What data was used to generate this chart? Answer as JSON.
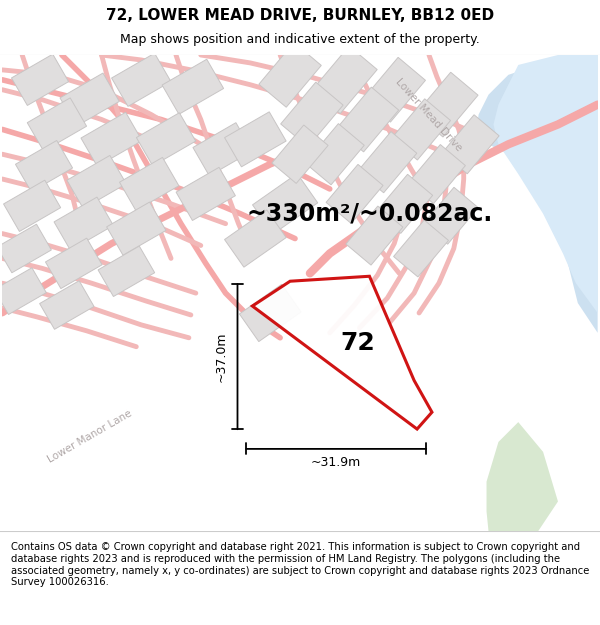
{
  "title": "72, LOWER MEAD DRIVE, BURNLEY, BB12 0ED",
  "subtitle": "Map shows position and indicative extent of the property.",
  "area_text": "~330m²/~0.082ac.",
  "label_72": "72",
  "dim_height": "~37.0m",
  "dim_width": "~31.9m",
  "footer": "Contains OS data © Crown copyright and database right 2021. This information is subject to Crown copyright and database rights 2023 and is reproduced with the permission of HM Land Registry. The polygons (including the associated geometry, namely x, y co-ordinates) are subject to Crown copyright and database rights 2023 Ordnance Survey 100026316.",
  "map_bg": "#f7f0f0",
  "road_color": "#f5a8a8",
  "road_color_thin": "#f2b8b8",
  "building_color": "#e0dede",
  "building_edge": "#c8c5c5",
  "plot_color": "#cc0000",
  "water_color": "#cce0f0",
  "water_color2": "#d8eaf8",
  "green_color": "#d8e8d0",
  "road_label_color": "#b0a8a8",
  "title_fontsize": 11,
  "subtitle_fontsize": 9,
  "area_fontsize": 17,
  "label_fontsize": 18,
  "dim_fontsize": 9,
  "footer_fontsize": 7.2
}
